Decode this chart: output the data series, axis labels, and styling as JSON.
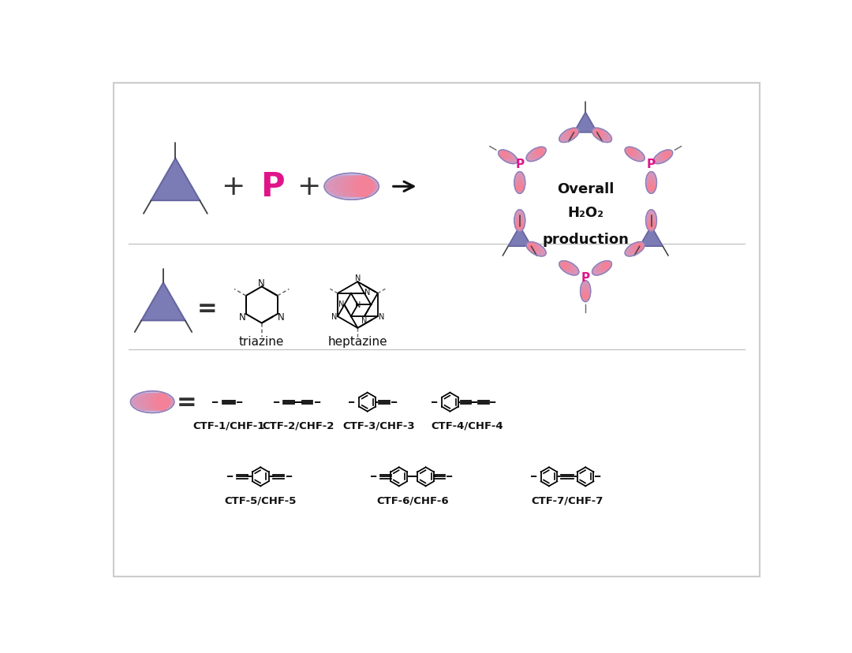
{
  "background_color": "#ffffff",
  "border_color": "#cccccc",
  "triangle_color": "#7b7bb5",
  "triangle_edge_color": "#6666a0",
  "p_color": "#e0148a",
  "text_color": "#111111",
  "labels": [
    "CTF-1/CHF-1",
    "CTF-2/CHF-2",
    "CTF-3/CHF-3",
    "CTF-4/CHF-4",
    "CTF-5/CHF-5",
    "CTF-6/CHF-6",
    "CTF-7/CHF-7"
  ],
  "triazine_label": "triazine",
  "heptazine_label": "heptazine",
  "center_text_line1": "Overall",
  "center_text_line2": "H₂O₂",
  "center_text_line3": "production"
}
